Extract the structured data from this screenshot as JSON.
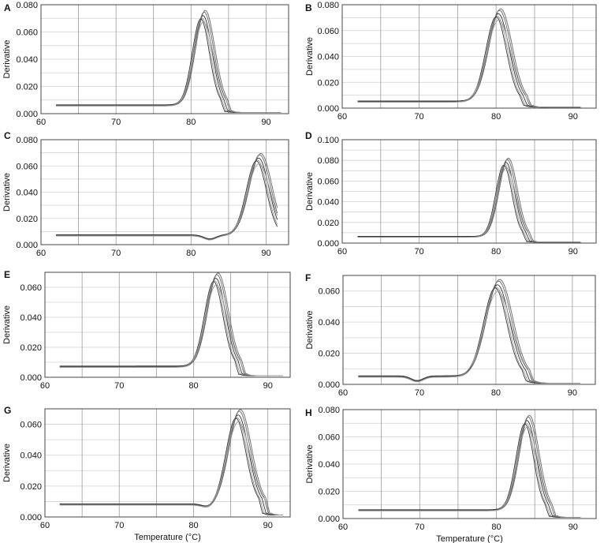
{
  "colors": {
    "curve_dark": "#333333",
    "curve_mid": "#666666",
    "curve_light": "#999999"
  },
  "chart_data": [
    {
      "label": "A",
      "type": "line",
      "ylabel": "Derivative",
      "xlabel": "",
      "xlim": [
        60,
        93
      ],
      "ylim": [
        0,
        0.08
      ],
      "xticks": [
        "60",
        "70",
        "80",
        "90"
      ],
      "yticks": [
        "0.000",
        "0.020",
        "0.040",
        "0.060",
        "0.080"
      ],
      "grid": true,
      "peak_x": 81.6,
      "peak_y": 0.072,
      "peak_width": 1.2,
      "baseline": 0.006,
      "x_start": 62,
      "x_end": 92,
      "dip": null
    },
    {
      "label": "B",
      "type": "line",
      "ylabel": "Derivative",
      "xlabel": "",
      "xlim": [
        60,
        93
      ],
      "ylim": [
        0,
        0.08
      ],
      "xticks": [
        "60",
        "70",
        "80",
        "90"
      ],
      "yticks": [
        "0.000",
        "0.020",
        "0.040",
        "0.060",
        "0.080"
      ],
      "grid": true,
      "peak_x": 80.3,
      "peak_y": 0.073,
      "peak_width": 1.4,
      "baseline": 0.005,
      "x_start": 62,
      "x_end": 91,
      "dip": null
    },
    {
      "label": "C",
      "type": "line",
      "ylabel": "Derivative",
      "xlabel": "",
      "xlim": [
        60,
        93
      ],
      "ylim": [
        0,
        0.08
      ],
      "xticks": [
        "60",
        "70",
        "80",
        "90"
      ],
      "yticks": [
        "0.000",
        "0.020",
        "0.040",
        "0.060",
        "0.080"
      ],
      "grid": true,
      "peak_x": 89.0,
      "peak_y": 0.066,
      "peak_width": 1.4,
      "baseline": 0.007,
      "x_start": 62,
      "x_end": 91.5,
      "dip": {
        "x": 82.5,
        "depth": 0.003
      }
    },
    {
      "label": "D",
      "type": "line",
      "ylabel": "Derivative",
      "xlabel": "",
      "xlim": [
        60,
        93
      ],
      "ylim": [
        0,
        0.1
      ],
      "xticks": [
        "60",
        "70",
        "80",
        "90"
      ],
      "yticks": [
        "0.000",
        "0.020",
        "0.040",
        "0.060",
        "0.080",
        "0.100"
      ],
      "grid": true,
      "peak_x": 81.3,
      "peak_y": 0.078,
      "peak_width": 1.1,
      "baseline": 0.006,
      "x_start": 62,
      "x_end": 91,
      "dip": null
    },
    {
      "label": "E",
      "type": "line",
      "ylabel": "Derivative",
      "xlabel": "",
      "xlim": [
        60,
        93
      ],
      "ylim": [
        0,
        0.07
      ],
      "xticks": [
        "60",
        "70",
        "80",
        "90"
      ],
      "yticks": [
        "0.000",
        "0.020",
        "0.040",
        "0.060"
      ],
      "grid": true,
      "peak_x": 83.0,
      "peak_y": 0.066,
      "peak_width": 1.3,
      "baseline": 0.007,
      "x_start": 62,
      "x_end": 92,
      "dip": null
    },
    {
      "label": "F",
      "type": "line",
      "ylabel": "Derivative",
      "xlabel": "",
      "xlim": [
        60,
        93
      ],
      "ylim": [
        0,
        0.07
      ],
      "xticks": [
        "60",
        "70",
        "80",
        "90"
      ],
      "yticks": [
        "0.000",
        "0.020",
        "0.040",
        "0.060"
      ],
      "grid": true,
      "peak_x": 80.2,
      "peak_y": 0.064,
      "peak_width": 1.6,
      "baseline": 0.005,
      "x_start": 62,
      "x_end": 91,
      "dip": {
        "x": 69.7,
        "depth": 0.003
      }
    },
    {
      "label": "G",
      "type": "line",
      "ylabel": "Derivative",
      "xlabel": "Temperature (°C)",
      "xlim": [
        60,
        93
      ],
      "ylim": [
        0,
        0.07
      ],
      "xticks": [
        "60",
        "70",
        "80",
        "90"
      ],
      "yticks": [
        "0.000",
        "0.020",
        "0.040",
        "0.060"
      ],
      "grid": true,
      "peak_x": 86.0,
      "peak_y": 0.066,
      "peak_width": 1.4,
      "baseline": 0.008,
      "x_start": 62,
      "x_end": 92,
      "dip": {
        "x": 82.0,
        "depth": 0.002
      }
    },
    {
      "label": "H",
      "type": "line",
      "ylabel": "Derivative",
      "xlabel": "Temperature (°C)",
      "xlim": [
        60,
        93
      ],
      "ylim": [
        0,
        0.08
      ],
      "xticks": [
        "60",
        "70",
        "80",
        "90"
      ],
      "yticks": [
        "0.000",
        "0.020",
        "0.040",
        "0.060",
        "0.080"
      ],
      "grid": true,
      "peak_x": 84.0,
      "peak_y": 0.072,
      "peak_width": 1.2,
      "baseline": 0.006,
      "x_start": 62,
      "x_end": 91,
      "dip": null
    }
  ]
}
